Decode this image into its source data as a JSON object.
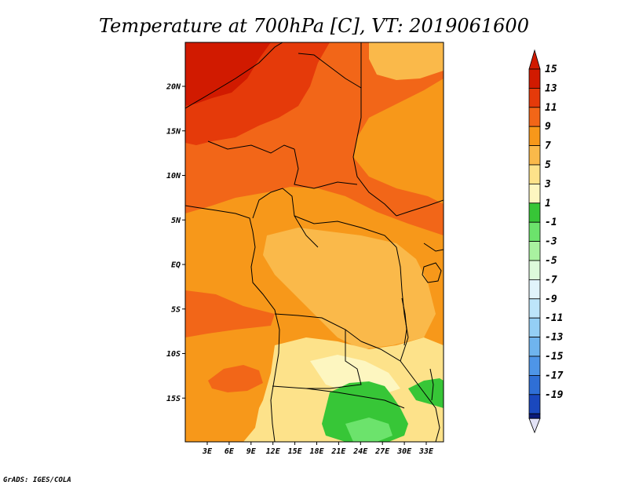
{
  "title": "Temperature at 700hPa [C], VT: 2019061600",
  "credit": "GrADS: IGES/COLA",
  "lat_ticks": [
    {
      "lat": 20,
      "label": "20N"
    },
    {
      "lat": 15,
      "label": "15N"
    },
    {
      "lat": 10,
      "label": "10N"
    },
    {
      "lat": 5,
      "label": "5N"
    },
    {
      "lat": 0,
      "label": "EQ"
    },
    {
      "lat": -5,
      "label": "5S"
    },
    {
      "lat": -10,
      "label": "10S"
    },
    {
      "lat": -15,
      "label": "15S"
    }
  ],
  "lon_ticks": [
    {
      "lon": 3,
      "label": "3E"
    },
    {
      "lon": 6,
      "label": "6E"
    },
    {
      "lon": 9,
      "label": "9E"
    },
    {
      "lon": 12,
      "label": "12E"
    },
    {
      "lon": 15,
      "label": "15E"
    },
    {
      "lon": 18,
      "label": "18E"
    },
    {
      "lon": 21,
      "label": "21E"
    },
    {
      "lon": 24,
      "label": "24E"
    },
    {
      "lon": 27,
      "label": "27E"
    },
    {
      "lon": 30,
      "label": "30E"
    },
    {
      "lon": 33,
      "label": "33E"
    }
  ],
  "colorbar": {
    "levels": [
      {
        "label": "15",
        "color": "#d11a00"
      },
      {
        "label": "13",
        "color": "#e53a0a"
      },
      {
        "label": "11",
        "color": "#f26618"
      },
      {
        "label": "9",
        "color": "#f7981a"
      },
      {
        "label": "7",
        "color": "#fab94a"
      },
      {
        "label": "5",
        "color": "#fde28a"
      },
      {
        "label": "3",
        "color": "#fdf6c0"
      },
      {
        "label": "1",
        "color": "#37c637"
      },
      {
        "label": "-1",
        "color": "#6ce36c"
      },
      {
        "label": "-3",
        "color": "#a9f2a0"
      },
      {
        "label": "-5",
        "color": "#ddfadb"
      },
      {
        "label": "-7",
        "color": "#e1f3fb"
      },
      {
        "label": "-9",
        "color": "#bde5fa"
      },
      {
        "label": "-11",
        "color": "#94cff5"
      },
      {
        "label": "-13",
        "color": "#6fb4ee"
      },
      {
        "label": "-15",
        "color": "#4e95e8"
      },
      {
        "label": "-17",
        "color": "#2f6fd6"
      },
      {
        "label": "-19",
        "color": "#1a48be"
      }
    ],
    "top_color": "#d11a00",
    "bottom_color": "#0a1a7a",
    "bottom_tip_color": "#e2e2f6"
  },
  "field_colors": {
    "t15": "#d11a00",
    "t13": "#e53a0a",
    "t11": "#f26618",
    "t9": "#f7981a",
    "t7": "#fab94a",
    "t5": "#fde28a",
    "t3": "#fdf6c0",
    "t1": "#37c637",
    "tm1": "#6ce36c"
  }
}
